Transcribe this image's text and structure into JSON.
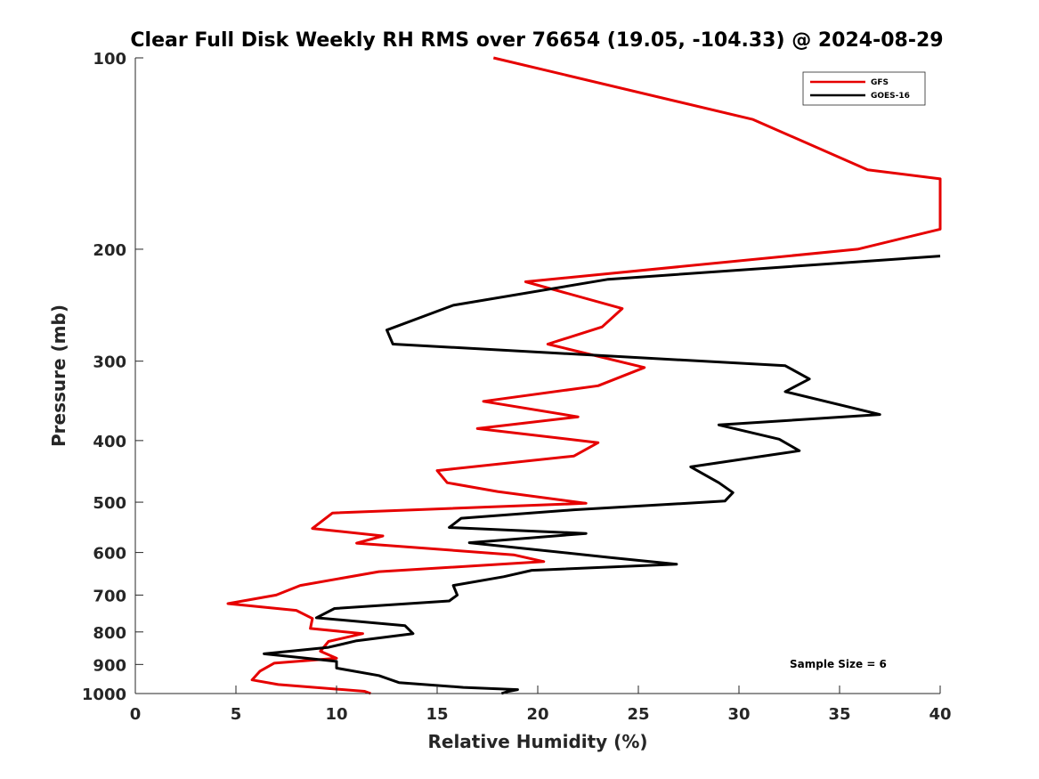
{
  "chart_data": {
    "type": "line",
    "title": "Clear Full Disk Weekly RH RMS over 76654 (19.05, -104.33) @ 2024-08-29",
    "xlabel": "Relative Humidity (%)",
    "ylabel": "Pressure (mb)",
    "xlim": [
      0,
      40
    ],
    "ylim": [
      100,
      1000
    ],
    "yscale": "log",
    "xticks": [
      "0",
      "5",
      "10",
      "15",
      "20",
      "25",
      "30",
      "35",
      "40"
    ],
    "yticks": [
      "100",
      "200",
      "300",
      "400",
      "500",
      "600",
      "700",
      "800",
      "900",
      "1000"
    ],
    "legend_position": "top-right",
    "annotation": "Sample Size = 6",
    "series": [
      {
        "name": "GFS",
        "color": "#e60000",
        "points": [
          [
            17.8,
            100
          ],
          [
            30.7,
            125
          ],
          [
            36.4,
            150
          ],
          [
            40.0,
            155
          ],
          [
            40.0,
            186
          ],
          [
            35.9,
            200
          ],
          [
            19.4,
            225
          ],
          [
            24.2,
            248
          ],
          [
            23.2,
            265
          ],
          [
            20.5,
            282
          ],
          [
            25.3,
            307
          ],
          [
            23.0,
            328
          ],
          [
            17.3,
            347
          ],
          [
            22.0,
            367
          ],
          [
            17.0,
            383
          ],
          [
            23.0,
            403
          ],
          [
            21.8,
            423
          ],
          [
            15.0,
            446
          ],
          [
            15.5,
            466
          ],
          [
            18.0,
            481
          ],
          [
            22.4,
            502
          ],
          [
            9.8,
            520
          ],
          [
            8.8,
            550
          ],
          [
            12.3,
            565
          ],
          [
            11.0,
            580
          ],
          [
            18.8,
            605
          ],
          [
            20.3,
            620
          ],
          [
            12.1,
            643
          ],
          [
            8.2,
            676
          ],
          [
            7.0,
            700
          ],
          [
            4.6,
            722
          ],
          [
            8.0,
            740
          ],
          [
            8.8,
            762
          ],
          [
            8.7,
            790
          ],
          [
            11.3,
            805
          ],
          [
            9.6,
            828
          ],
          [
            9.2,
            858
          ],
          [
            10.0,
            880
          ],
          [
            6.9,
            896
          ],
          [
            6.2,
            922
          ],
          [
            5.8,
            952
          ],
          [
            7.1,
            968
          ],
          [
            11.4,
            992
          ],
          [
            11.7,
            1000
          ]
        ]
      },
      {
        "name": "GOES-16",
        "color": "#000000",
        "points": [
          [
            40.0,
            205
          ],
          [
            23.5,
            223
          ],
          [
            15.8,
            245
          ],
          [
            12.5,
            268
          ],
          [
            12.8,
            282
          ],
          [
            32.3,
            305
          ],
          [
            33.5,
            320
          ],
          [
            32.3,
            335
          ],
          [
            37.0,
            364
          ],
          [
            29.0,
            378
          ],
          [
            32.0,
            398
          ],
          [
            33.0,
            415
          ],
          [
            27.6,
            440
          ],
          [
            29.0,
            466
          ],
          [
            29.7,
            483
          ],
          [
            29.3,
            498
          ],
          [
            21.8,
            514
          ],
          [
            16.2,
            530
          ],
          [
            15.6,
            548
          ],
          [
            22.4,
            560
          ],
          [
            16.6,
            579
          ],
          [
            23.6,
            611
          ],
          [
            26.9,
            626
          ],
          [
            19.7,
            640
          ],
          [
            18.3,
            655
          ],
          [
            15.8,
            676
          ],
          [
            16.0,
            700
          ],
          [
            15.6,
            715
          ],
          [
            9.9,
            735
          ],
          [
            9.0,
            760
          ],
          [
            13.4,
            782
          ],
          [
            13.8,
            805
          ],
          [
            11.0,
            826
          ],
          [
            9.6,
            846
          ],
          [
            6.4,
            866
          ],
          [
            10.0,
            890
          ],
          [
            10.0,
            912
          ],
          [
            12.1,
            937
          ],
          [
            13.1,
            961
          ],
          [
            16.3,
            978
          ],
          [
            19.0,
            986
          ],
          [
            18.5,
            993
          ],
          [
            18.2,
            1000
          ]
        ]
      }
    ]
  }
}
